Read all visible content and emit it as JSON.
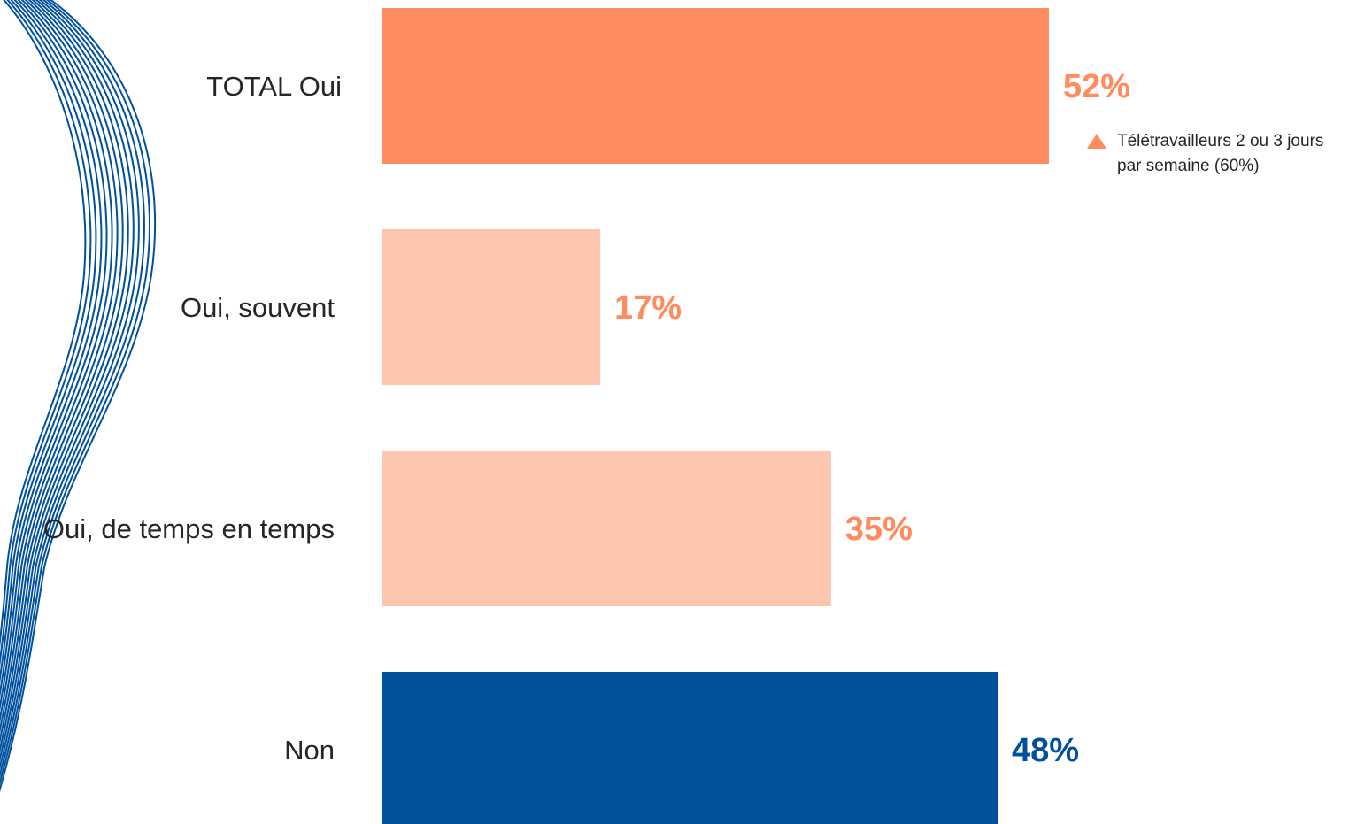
{
  "chart_data": {
    "type": "bar",
    "orientation": "horizontal",
    "categories": [
      "TOTAL Oui",
      "Oui, souvent",
      "Oui, de temps en temps",
      "Non"
    ],
    "values": [
      52,
      17,
      35,
      48
    ],
    "value_labels": [
      "52%",
      "17%",
      "35%",
      "48%"
    ],
    "unit": "%",
    "xlim": [
      0,
      100
    ],
    "grid": false,
    "legend": "none",
    "bar_colors": [
      "#FF8C5F",
      "#FCC5AE",
      "#FCC5AE",
      "#00509E"
    ],
    "value_label_colors": [
      "#FF8C5F",
      "#FF8C5F",
      "#FF8C5F",
      "#00509E"
    ],
    "annotation": {
      "category": "TOTAL Oui",
      "icon": "triangle-up-icon",
      "color": "#FF8C5F",
      "text": "Télétravailleurs 2 ou 3 jours par semaine (60%)"
    }
  },
  "decoration": {
    "wave_color": "#00509E"
  }
}
